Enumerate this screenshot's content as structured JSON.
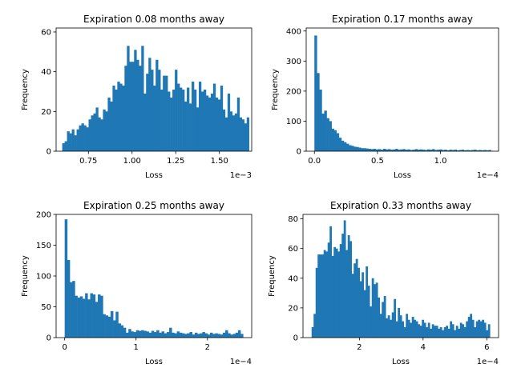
{
  "chart_data": [
    {
      "type": "bar",
      "title": "Expiration 0.08 months away",
      "xlabel": "Loss",
      "ylabel": "Frequency",
      "offset_label": "1e−3",
      "color": "#1f77b4",
      "grid": false,
      "xlim": [
        0.565,
        1.685
      ],
      "ylim": [
        0,
        62
      ],
      "xticks": [
        0.75,
        1.0,
        1.25,
        1.5
      ],
      "xtick_labels": [
        "0.75",
        "1.00",
        "1.25",
        "1.50"
      ],
      "yticks": [
        0,
        20,
        40,
        60
      ],
      "ytick_labels": [
        "0",
        "20",
        "40",
        "60"
      ],
      "bin_start": 0.6,
      "bin_end": 1.67,
      "values": [
        4,
        5,
        10,
        9,
        11,
        8,
        11,
        13,
        14,
        13,
        12,
        16,
        18,
        19,
        22,
        17,
        16,
        21,
        20,
        27,
        25,
        33,
        31,
        35,
        34,
        33,
        43,
        53,
        45,
        45,
        51,
        46,
        43,
        53,
        29,
        39,
        47,
        41,
        33,
        46,
        41,
        31,
        38,
        38,
        30,
        27,
        31,
        41,
        34,
        32,
        31,
        25,
        32,
        24,
        35,
        31,
        22,
        35,
        30,
        31,
        28,
        27,
        29,
        34,
        27,
        26,
        33,
        21,
        17,
        29,
        20,
        18,
        19,
        27,
        17,
        16,
        14,
        17
      ]
    },
    {
      "type": "bar",
      "title": "Expiration 0.17 months away",
      "xlabel": "Loss",
      "ylabel": "Frequency",
      "offset_label": "1e−4",
      "color": "#1f77b4",
      "grid": false,
      "xlim": [
        -0.065,
        1.46
      ],
      "ylim": [
        0,
        410
      ],
      "xticks": [
        0.0,
        0.5,
        1.0
      ],
      "xtick_labels": [
        "0.0",
        "0.5",
        "1.0"
      ],
      "yticks": [
        0,
        100,
        200,
        300,
        400
      ],
      "ytick_labels": [
        "0",
        "100",
        "200",
        "300",
        "400"
      ],
      "bin_start": 0.0,
      "bin_end": 1.4,
      "values": [
        385,
        260,
        205,
        125,
        135,
        110,
        100,
        75,
        70,
        60,
        45,
        35,
        30,
        25,
        20,
        18,
        15,
        14,
        12,
        10,
        10,
        9,
        8,
        7,
        8,
        6,
        7,
        5,
        8,
        6,
        7,
        5,
        6,
        8,
        5,
        6,
        7,
        5,
        6,
        4,
        5,
        7,
        5,
        6,
        5,
        4,
        6,
        5,
        7,
        4,
        5,
        6,
        4,
        5,
        3,
        5,
        4,
        5,
        3,
        4,
        5,
        3,
        4,
        3,
        4,
        5,
        3,
        4,
        3,
        4,
        3,
        4
      ]
    },
    {
      "type": "bar",
      "title": "Expiration 0.25 months away",
      "xlabel": "Loss",
      "ylabel": "Frequency",
      "offset_label": "1e−4",
      "color": "#1f77b4",
      "grid": false,
      "xlim": [
        -0.12,
        2.62
      ],
      "ylim": [
        0,
        200
      ],
      "xticks": [
        0,
        1,
        2
      ],
      "xtick_labels": [
        "0",
        "1",
        "2"
      ],
      "yticks": [
        0,
        50,
        100,
        150,
        200
      ],
      "ytick_labels": [
        "0",
        "50",
        "100",
        "150",
        "200"
      ],
      "bin_start": 0.0,
      "bin_end": 2.5,
      "values": [
        192,
        126,
        90,
        92,
        68,
        65,
        67,
        63,
        72,
        62,
        72,
        70,
        58,
        70,
        68,
        38,
        36,
        34,
        43,
        28,
        42,
        23,
        20,
        16,
        8,
        14,
        10,
        9,
        12,
        11,
        12,
        11,
        10,
        8,
        11,
        9,
        12,
        8,
        10,
        7,
        9,
        16,
        8,
        7,
        10,
        8,
        7,
        6,
        7,
        9,
        5,
        8,
        6,
        7,
        9,
        7,
        5,
        8,
        6,
        7,
        6,
        5,
        8,
        12,
        7,
        5,
        6,
        8,
        12,
        6
      ]
    },
    {
      "type": "bar",
      "title": "Expiration 0.33 months away",
      "xlabel": "Loss",
      "ylabel": "Frequency",
      "offset_label": "1e−4",
      "color": "#1f77b4",
      "grid": false,
      "xlim": [
        0.23,
        6.37
      ],
      "ylim": [
        0,
        83
      ],
      "xticks": [
        2,
        4,
        6
      ],
      "xtick_labels": [
        "2",
        "4",
        "6"
      ],
      "yticks": [
        0,
        20,
        40,
        60,
        80
      ],
      "ytick_labels": [
        "0",
        "20",
        "40",
        "60",
        "80"
      ],
      "bin_start": 0.5,
      "bin_end": 6.1,
      "values": [
        7,
        16,
        47,
        56,
        56,
        56,
        59,
        58,
        64,
        75,
        55,
        61,
        60,
        58,
        63,
        70,
        79,
        59,
        69,
        65,
        43,
        50,
        53,
        47,
        38,
        44,
        32,
        48,
        35,
        21,
        40,
        36,
        37,
        27,
        16,
        24,
        28,
        13,
        15,
        12,
        17,
        26,
        11,
        20,
        15,
        11,
        7,
        16,
        12,
        10,
        14,
        12,
        11,
        9,
        8,
        12,
        10,
        7,
        10,
        6,
        9,
        8,
        8,
        6,
        7,
        5,
        7,
        8,
        6,
        11,
        9,
        5,
        8,
        6,
        10,
        9,
        7,
        11,
        14,
        16,
        12,
        7,
        11,
        12,
        11,
        12,
        10,
        5,
        9
      ]
    }
  ]
}
